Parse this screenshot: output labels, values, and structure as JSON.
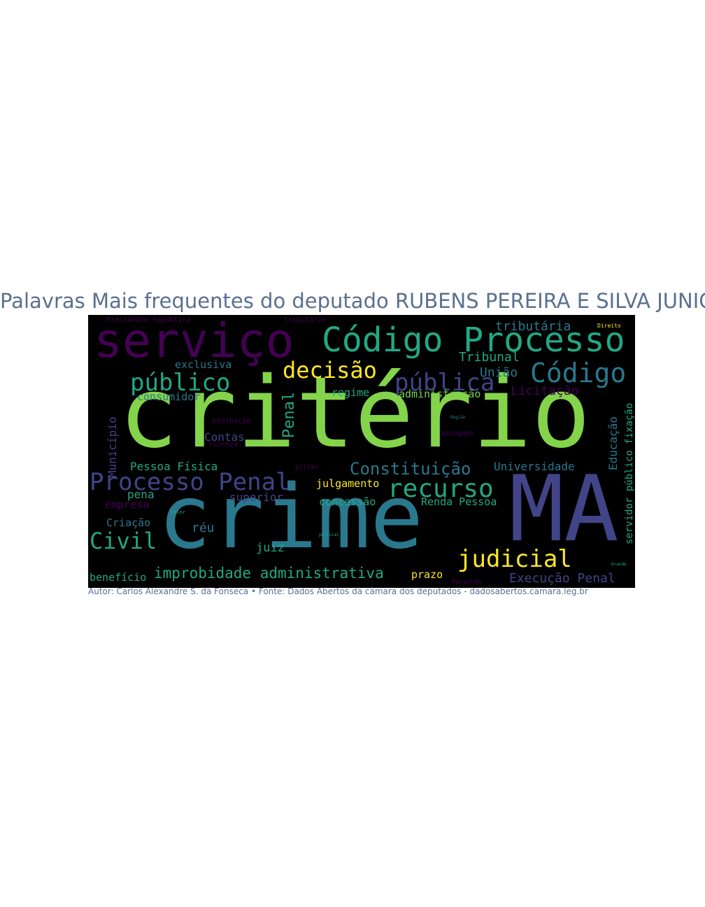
{
  "title": "Palavras Mais frequentes do deputado RUBENS PEREIRA E SILVA JUNIOR",
  "caption": "Autor: Carlos Alexandre S. da Fonseca • Fonte: Dados Abertos da câmara dos deputados - dadosabertos.camara.leg.br",
  "background": "#000000",
  "words": [
    {
      "text": "critério",
      "color": "#84d44b"
    },
    {
      "text": "crime",
      "color": "#2a788e"
    },
    {
      "text": "MA",
      "color": "#414487"
    },
    {
      "text": "serviço",
      "color": "#440154"
    },
    {
      "text": "Código Processo",
      "color": "#22a884"
    },
    {
      "text": "Processo Penal",
      "color": "#414487"
    },
    {
      "text": "Código",
      "color": "#2a788e"
    },
    {
      "text": "público",
      "color": "#22a884"
    },
    {
      "text": "pública",
      "color": "#414487"
    },
    {
      "text": "decisão",
      "color": "#fde725"
    },
    {
      "text": "recurso",
      "color": "#22a884"
    },
    {
      "text": "judicial",
      "color": "#fde725"
    },
    {
      "text": "Civil",
      "color": "#22a884"
    },
    {
      "text": "improbidade administrativa",
      "color": "#22a884"
    },
    {
      "text": "Constituição",
      "color": "#2a788e"
    },
    {
      "text": "Penal",
      "color": "#22a884"
    },
    {
      "text": "Execução Penal",
      "color": "#414487"
    },
    {
      "text": "tributária",
      "color": "#2a788e"
    },
    {
      "text": "Tribunal",
      "color": "#22a884"
    },
    {
      "text": "União",
      "color": "#2a788e"
    },
    {
      "text": "Licitação",
      "color": "#440154"
    },
    {
      "text": "administração",
      "color": "#7ad151"
    },
    {
      "text": "regime",
      "color": "#22a884"
    },
    {
      "text": "consumidor",
      "color": "#2a788e"
    },
    {
      "text": "exclusiva",
      "color": "#2a788e"
    },
    {
      "text": "Pessoa Física",
      "color": "#22a884"
    },
    {
      "text": "Município",
      "color": "#414487"
    },
    {
      "text": "Contas",
      "color": "#414487"
    },
    {
      "text": "Universidade",
      "color": "#2a788e"
    },
    {
      "text": "Educação",
      "color": "#2a788e"
    },
    {
      "text": "servidor público fixação",
      "color": "#22a884"
    },
    {
      "text": "julgamento",
      "color": "#fde725"
    },
    {
      "text": "superior",
      "color": "#414487"
    },
    {
      "text": "concessão",
      "color": "#22a884"
    },
    {
      "text": "Renda Pessoa",
      "color": "#22a884"
    },
    {
      "text": "pena",
      "color": "#22a884"
    },
    {
      "text": "empresa",
      "color": "#440154"
    },
    {
      "text": "Criação",
      "color": "#2a788e"
    },
    {
      "text": "réu",
      "color": "#2a788e"
    },
    {
      "text": "juiz",
      "color": "#22a884"
    },
    {
      "text": "prazo",
      "color": "#fde725"
    },
    {
      "text": "benefício",
      "color": "#22a884"
    },
    {
      "text": "Direito",
      "color": "#fde725"
    },
    {
      "text": "Presidente República",
      "color": "#440154"
    },
    {
      "text": "tributário",
      "color": "#440154"
    },
    {
      "text": "advogado",
      "color": "#440154"
    },
    {
      "text": "licença",
      "color": "#440154"
    },
    {
      "text": "proibição",
      "color": "#440154"
    },
    {
      "text": "Maranhão",
      "color": "#440154"
    },
    {
      "text": "prisão",
      "color": "#440154"
    },
    {
      "text": "Região",
      "color": "#2a788e"
    },
    {
      "text": "Grande",
      "color": "#22a884"
    },
    {
      "text": "Valor",
      "color": "#22a884"
    },
    {
      "text": "policial",
      "color": "#22a884"
    }
  ]
}
